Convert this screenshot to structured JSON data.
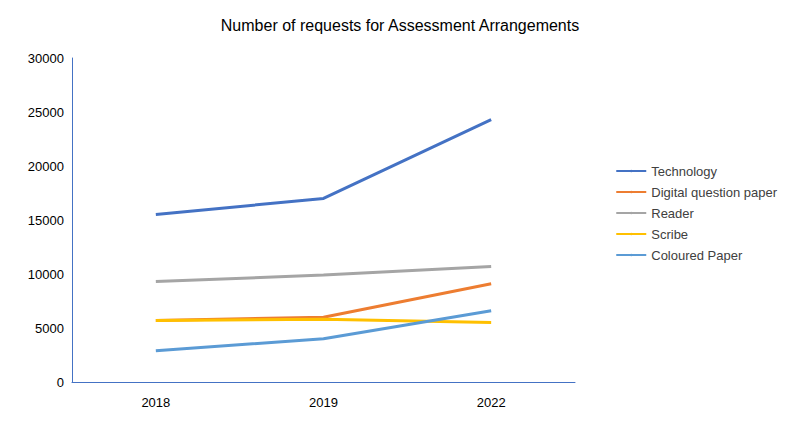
{
  "chart_data": {
    "type": "line",
    "title": "Number of requests for Assessment Arrangements",
    "categories": [
      "2018",
      "2019",
      "2022"
    ],
    "series": [
      {
        "name": "Technology",
        "color": "#4472c4",
        "values": [
          15500,
          17000,
          24300
        ]
      },
      {
        "name": "Digital question paper",
        "color": "#ed7d31",
        "values": [
          5700,
          6000,
          9100
        ]
      },
      {
        "name": "Reader",
        "color": "#a5a5a5",
        "values": [
          9300,
          9900,
          10700
        ]
      },
      {
        "name": "Scribe",
        "color": "#ffc000",
        "values": [
          5700,
          5800,
          5500
        ]
      },
      {
        "name": "Coloured Paper",
        "color": "#5b9bd5",
        "values": [
          2900,
          4000,
          6600
        ]
      }
    ],
    "ylim": [
      0,
      30000
    ],
    "yticks": [
      0,
      5000,
      10000,
      15000,
      20000,
      25000,
      30000
    ],
    "grid": false,
    "legend": "right",
    "marker": "none"
  }
}
